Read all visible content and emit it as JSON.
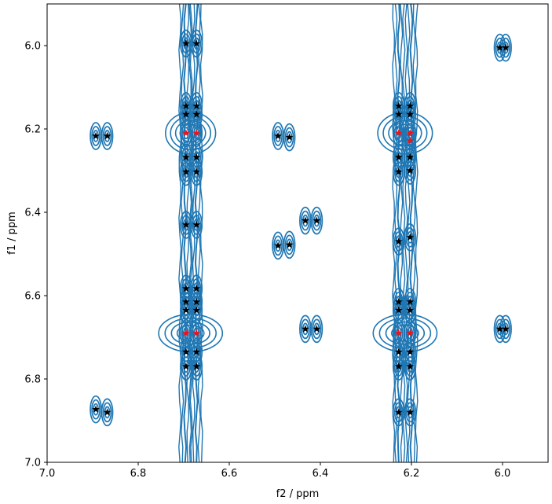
{
  "chart_data": {
    "type": "contour",
    "xlabel": "f2 / ppm",
    "ylabel": "f1 / ppm",
    "xlim": [
      7.0,
      5.9
    ],
    "ylim": [
      7.0,
      5.9
    ],
    "x_ticks": [
      {
        "value": 7.0,
        "label": "7.0"
      },
      {
        "value": 6.8,
        "label": "6.8"
      },
      {
        "value": 6.6,
        "label": "6.6"
      },
      {
        "value": 6.4,
        "label": "6.4"
      },
      {
        "value": 6.2,
        "label": "6.2"
      },
      {
        "value": 6.0,
        "label": "6.0"
      }
    ],
    "y_ticks": [
      {
        "value": 6.0,
        "label": "6.0"
      },
      {
        "value": 6.2,
        "label": "6.2"
      },
      {
        "value": 6.4,
        "label": "6.4"
      },
      {
        "value": 6.6,
        "label": "6.6"
      },
      {
        "value": 6.8,
        "label": "6.8"
      },
      {
        "value": 7.0,
        "label": "7.0"
      }
    ],
    "contour_color": "#1f77b4",
    "marker_colors": {
      "black": "#000000",
      "red": "#e8151b"
    },
    "streaks": [
      {
        "x": 6.697,
        "y_range": [
          5.9,
          7.0
        ]
      },
      {
        "x": 6.672,
        "y_range": [
          5.9,
          7.0
        ]
      },
      {
        "x": 6.228,
        "y_range": [
          5.9,
          7.0
        ]
      },
      {
        "x": 6.2,
        "y_range": [
          5.9,
          7.0
        ]
      }
    ],
    "clusters": [
      {
        "x": 6.685,
        "y": 6.21,
        "rx": 0.055,
        "ry": 0.05
      },
      {
        "x": 6.685,
        "y": 6.69,
        "rx": 0.07,
        "ry": 0.045
      },
      {
        "x": 6.214,
        "y": 6.21,
        "rx": 0.06,
        "ry": 0.05
      },
      {
        "x": 6.214,
        "y": 6.69,
        "rx": 0.07,
        "ry": 0.045
      }
    ],
    "peaks": [
      {
        "x": 6.695,
        "y": 5.995,
        "c": "black"
      },
      {
        "x": 6.672,
        "y": 5.995,
        "c": "black"
      },
      {
        "x": 6.006,
        "y": 6.005,
        "c": "black"
      },
      {
        "x": 5.993,
        "y": 6.005,
        "c": "black"
      },
      {
        "x": 6.695,
        "y": 6.145,
        "c": "black"
      },
      {
        "x": 6.672,
        "y": 6.145,
        "c": "black"
      },
      {
        "x": 6.695,
        "y": 6.165,
        "c": "black"
      },
      {
        "x": 6.672,
        "y": 6.165,
        "c": "black"
      },
      {
        "x": 6.695,
        "y": 6.21,
        "c": "red"
      },
      {
        "x": 6.672,
        "y": 6.21,
        "c": "red"
      },
      {
        "x": 6.695,
        "y": 6.268,
        "c": "black"
      },
      {
        "x": 6.672,
        "y": 6.268,
        "c": "black"
      },
      {
        "x": 6.695,
        "y": 6.303,
        "c": "black"
      },
      {
        "x": 6.672,
        "y": 6.303,
        "c": "black"
      },
      {
        "x": 6.893,
        "y": 6.217,
        "c": "black"
      },
      {
        "x": 6.868,
        "y": 6.217,
        "c": "black"
      },
      {
        "x": 6.493,
        "y": 6.217,
        "c": "black"
      },
      {
        "x": 6.468,
        "y": 6.22,
        "c": "black"
      },
      {
        "x": 6.228,
        "y": 6.145,
        "c": "black"
      },
      {
        "x": 6.203,
        "y": 6.145,
        "c": "black"
      },
      {
        "x": 6.228,
        "y": 6.165,
        "c": "black"
      },
      {
        "x": 6.203,
        "y": 6.165,
        "c": "black"
      },
      {
        "x": 6.228,
        "y": 6.21,
        "c": "red"
      },
      {
        "x": 6.203,
        "y": 6.21,
        "c": "red"
      },
      {
        "x": 6.203,
        "y": 6.228,
        "c": "red"
      },
      {
        "x": 6.228,
        "y": 6.268,
        "c": "black"
      },
      {
        "x": 6.203,
        "y": 6.268,
        "c": "black"
      },
      {
        "x": 6.228,
        "y": 6.303,
        "c": "black"
      },
      {
        "x": 6.203,
        "y": 6.3,
        "c": "black"
      },
      {
        "x": 6.695,
        "y": 6.43,
        "c": "black"
      },
      {
        "x": 6.672,
        "y": 6.43,
        "c": "black"
      },
      {
        "x": 6.433,
        "y": 6.42,
        "c": "black"
      },
      {
        "x": 6.408,
        "y": 6.42,
        "c": "black"
      },
      {
        "x": 6.493,
        "y": 6.48,
        "c": "black"
      },
      {
        "x": 6.468,
        "y": 6.478,
        "c": "black"
      },
      {
        "x": 6.228,
        "y": 6.47,
        "c": "black"
      },
      {
        "x": 6.203,
        "y": 6.46,
        "c": "black"
      },
      {
        "x": 6.695,
        "y": 6.583,
        "c": "black"
      },
      {
        "x": 6.672,
        "y": 6.583,
        "c": "black"
      },
      {
        "x": 6.695,
        "y": 6.615,
        "c": "black"
      },
      {
        "x": 6.672,
        "y": 6.615,
        "c": "black"
      },
      {
        "x": 6.695,
        "y": 6.635,
        "c": "black"
      },
      {
        "x": 6.672,
        "y": 6.635,
        "c": "black"
      },
      {
        "x": 6.695,
        "y": 6.69,
        "c": "red"
      },
      {
        "x": 6.672,
        "y": 6.69,
        "c": "red"
      },
      {
        "x": 6.695,
        "y": 6.735,
        "c": "black"
      },
      {
        "x": 6.672,
        "y": 6.735,
        "c": "black"
      },
      {
        "x": 6.695,
        "y": 6.77,
        "c": "black"
      },
      {
        "x": 6.672,
        "y": 6.77,
        "c": "black"
      },
      {
        "x": 6.228,
        "y": 6.615,
        "c": "black"
      },
      {
        "x": 6.203,
        "y": 6.615,
        "c": "black"
      },
      {
        "x": 6.228,
        "y": 6.635,
        "c": "black"
      },
      {
        "x": 6.203,
        "y": 6.635,
        "c": "black"
      },
      {
        "x": 6.228,
        "y": 6.69,
        "c": "red"
      },
      {
        "x": 6.203,
        "y": 6.69,
        "c": "red"
      },
      {
        "x": 6.228,
        "y": 6.735,
        "c": "black"
      },
      {
        "x": 6.203,
        "y": 6.735,
        "c": "black"
      },
      {
        "x": 6.228,
        "y": 6.77,
        "c": "black"
      },
      {
        "x": 6.203,
        "y": 6.77,
        "c": "black"
      },
      {
        "x": 6.433,
        "y": 6.68,
        "c": "black"
      },
      {
        "x": 6.408,
        "y": 6.68,
        "c": "black"
      },
      {
        "x": 6.006,
        "y": 6.68,
        "c": "black"
      },
      {
        "x": 5.993,
        "y": 6.68,
        "c": "black"
      },
      {
        "x": 6.893,
        "y": 6.873,
        "c": "black"
      },
      {
        "x": 6.868,
        "y": 6.88,
        "c": "black"
      },
      {
        "x": 6.228,
        "y": 6.88,
        "c": "black"
      },
      {
        "x": 6.203,
        "y": 6.88,
        "c": "black"
      }
    ]
  }
}
